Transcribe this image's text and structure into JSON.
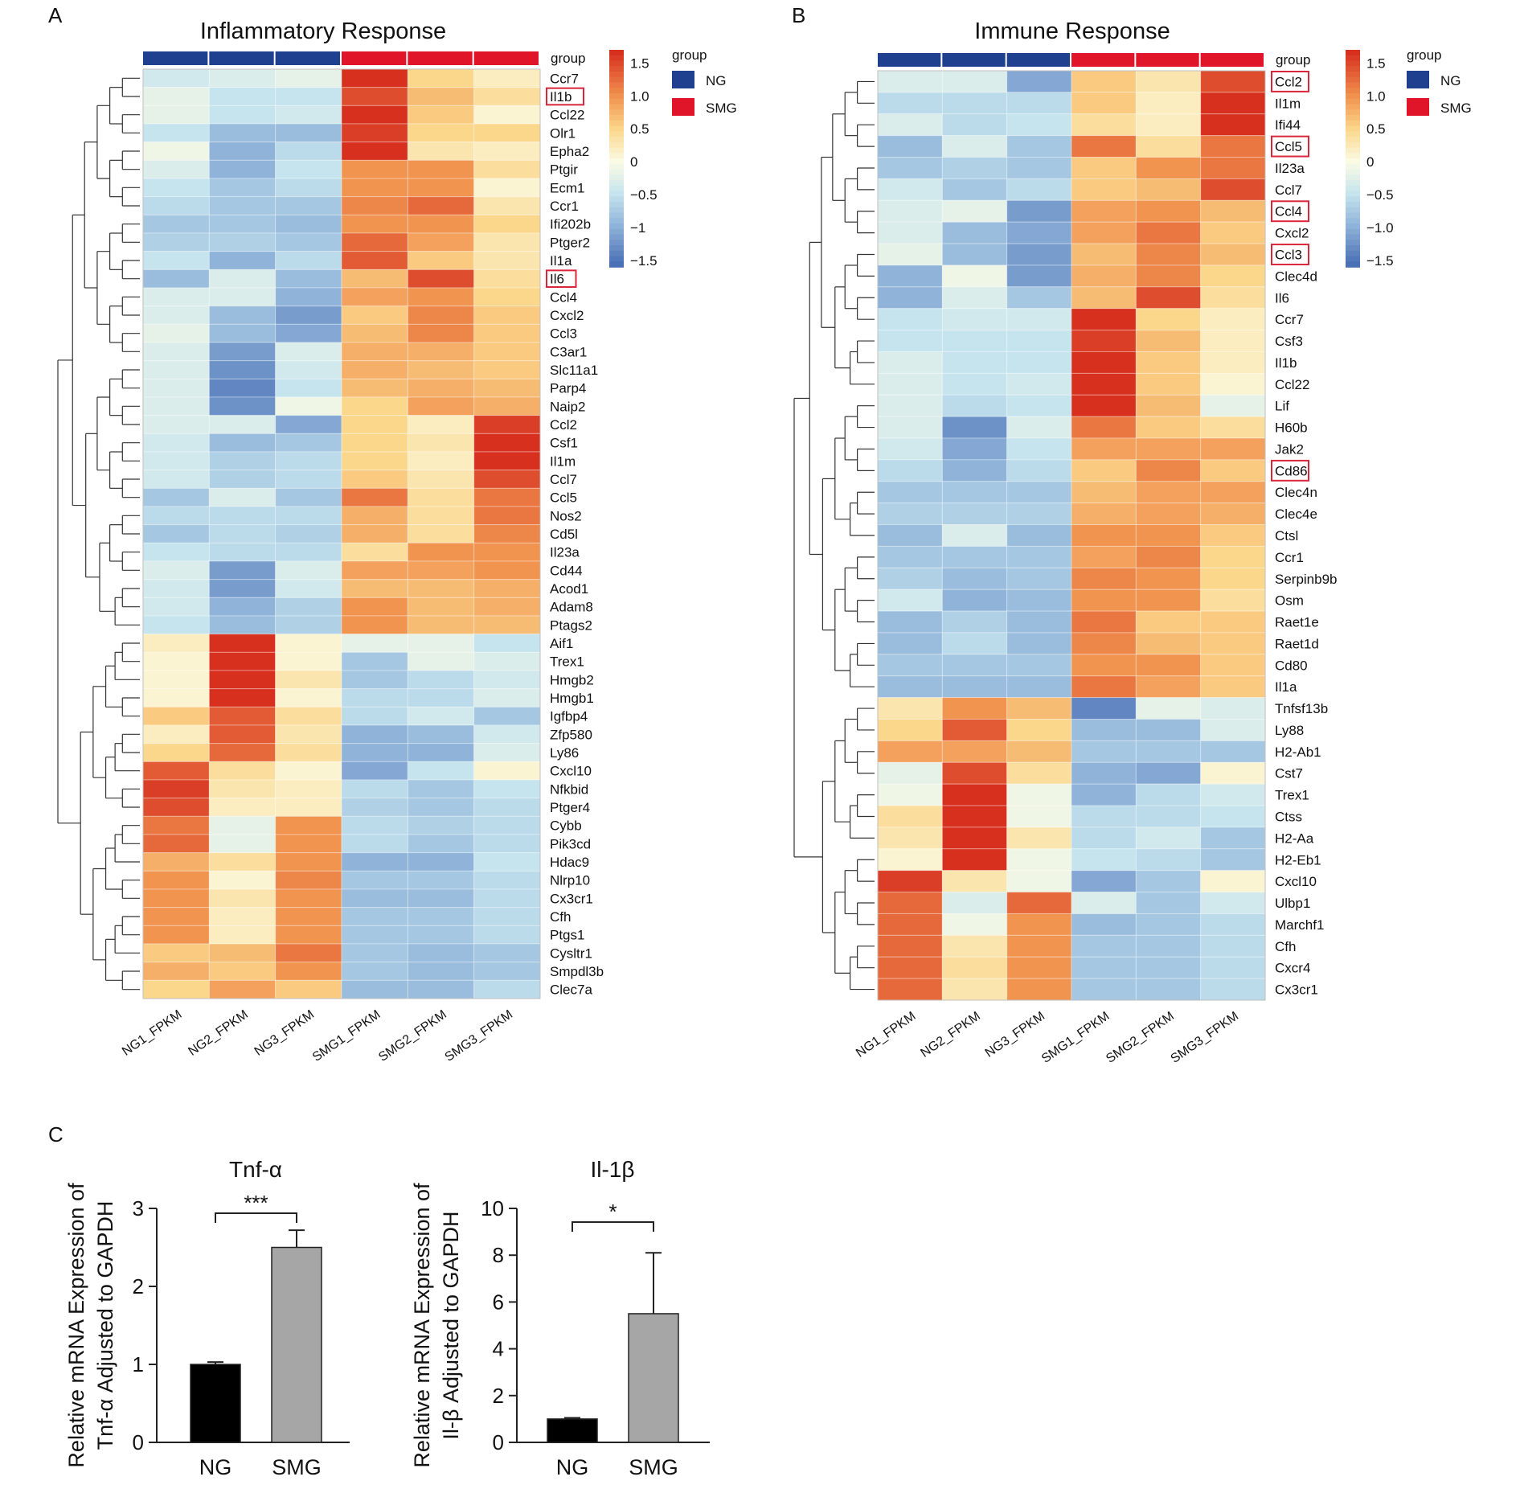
{
  "panels": {
    "A": {
      "label": "A",
      "title": "Inflammatory Response",
      "group_label": "group",
      "columns": [
        "NG1_FPKM",
        "NG2_FPKM",
        "NG3_FPKM",
        "SMG1_FPKM",
        "SMG2_FPKM",
        "SMG3_FPKM"
      ],
      "column_groups": [
        "NG",
        "NG",
        "NG",
        "SMG",
        "SMG",
        "SMG"
      ],
      "genes": [
        "Ccr7",
        "Il1b",
        "Ccl22",
        "Olr1",
        "Epha2",
        "Ptgir",
        "Ecm1",
        "Ccr1",
        "Ifi202b",
        "Ptger2",
        "Il1a",
        "Il6",
        "Ccl4",
        "Cxcl2",
        "Ccl3",
        "C3ar1",
        "Slc11a1",
        "Parp4",
        "Naip2",
        "Ccl2",
        "Csf1",
        "Il1m",
        "Ccl7",
        "Ccl5",
        "Nos2",
        "Cd5l",
        "Il23a",
        "Cd44",
        "Acod1",
        "Adam8",
        "Ptags2",
        "Aif1",
        "Trex1",
        "Hmgb2",
        "Hmgb1",
        "Igfbp4",
        "Zfp580",
        "Ly86",
        "Cxcl10",
        "Nfkbid",
        "Ptger4",
        "Cybb",
        "Pik3cd",
        "Hdac9",
        "Nlrp10",
        "Cx3cr1",
        "Cfh",
        "Ptgs1",
        "Cysltr1",
        "Smpdl3b",
        "Clec7a"
      ],
      "highlighted_genes": [
        "Il1b",
        "Il6"
      ],
      "scale_ticks": [
        "1.5",
        "1.0",
        "0.5",
        "0",
        "−0.5",
        "−1",
        "−1.5"
      ],
      "legend_title": "group",
      "legend_items": [
        {
          "name": "NG",
          "color": "#1f3f8f"
        },
        {
          "name": "SMG",
          "color": "#e0152a"
        }
      ]
    },
    "B": {
      "label": "B",
      "title": "Immune Response",
      "group_label": "group",
      "columns": [
        "NG1_FPKM",
        "NG2_FPKM",
        "NG3_FPKM",
        "SMG1_FPKM",
        "SMG2_FPKM",
        "SMG3_FPKM"
      ],
      "column_groups": [
        "NG",
        "NG",
        "NG",
        "SMG",
        "SMG",
        "SMG"
      ],
      "genes": [
        "Ccl2",
        "Il1m",
        "Ifi44",
        "Ccl5",
        "Il23a",
        "Ccl7",
        "Ccl4",
        "Cxcl2",
        "Ccl3",
        "Clec4d",
        "Il6",
        "Ccr7",
        "Csf3",
        "Il1b",
        "Ccl22",
        "Lif",
        "H60b",
        "Jak2",
        "Cd86",
        "Clec4n",
        "Clec4e",
        "Ctsl",
        "Ccr1",
        "Serpinb9b",
        "Osm",
        "Raet1e",
        "Raet1d",
        "Cd80",
        "Il1a",
        "Tnfsf13b",
        "Ly88",
        "H2-Ab1",
        "Cst7",
        "Trex1",
        "Ctss",
        "H2-Aa",
        "H2-Eb1",
        "Cxcl10",
        "Ulbp1",
        "Marchf1",
        "Cfh",
        "Cxcr4",
        "Cx3cr1"
      ],
      "highlighted_genes": [
        "Ccl2",
        "Ccl5",
        "Ccl4",
        "Ccl3",
        "Cd86"
      ],
      "scale_ticks": [
        "1.5",
        "1.0",
        "0.5",
        "0",
        "−0.5",
        "−1.0",
        "−1.5"
      ],
      "legend_title": "group",
      "legend_items": [
        {
          "name": "NG",
          "color": "#1f3f8f"
        },
        {
          "name": "SMG",
          "color": "#e0152a"
        }
      ]
    },
    "C": {
      "label": "C"
    }
  },
  "colors": {
    "ng": "#1f3f8f",
    "smg": "#e0152a",
    "highlight_box": "#d9263a",
    "bar_ng": "#000000",
    "bar_smg": "#a6a6a6",
    "heat_scale": [
      "#4a70b5",
      "#8fb3d9",
      "#c6e4ee",
      "#fbfbe3",
      "#fbd78c",
      "#f19450",
      "#d7301f"
    ]
  },
  "chart_data": [
    {
      "type": "heatmap",
      "title": "Inflammatory Response",
      "x": [
        "NG1_FPKM",
        "NG2_FPKM",
        "NG3_FPKM",
        "SMG1_FPKM",
        "SMG2_FPKM",
        "SMG3_FPKM"
      ],
      "y": [
        "Ccr7",
        "Il1b",
        "Ccl22",
        "Olr1",
        "Epha2",
        "Ptgir",
        "Ecm1",
        "Ccr1",
        "Ifi202b",
        "Ptger2",
        "Il1a",
        "Il6",
        "Ccl4",
        "Cxcl2",
        "Ccl3",
        "C3ar1",
        "Slc11a1",
        "Parp4",
        "Naip2",
        "Ccl2",
        "Csf1",
        "Il1m",
        "Ccl7",
        "Ccl5",
        "Nos2",
        "Cd5l",
        "Il23a",
        "Cd44",
        "Acod1",
        "Adam8",
        "Ptags2",
        "Aif1",
        "Trex1",
        "Hmgb2",
        "Hmgb1",
        "Igfbp4",
        "Zfp580",
        "Ly86",
        "Cxcl10",
        "Nfkbid",
        "Ptger4",
        "Cybb",
        "Pik3cd",
        "Hdac9",
        "Nlrp10",
        "Cx3cr1",
        "Cfh",
        "Ptgs1",
        "Cysltr1",
        "Smpdl3b",
        "Clec7a"
      ],
      "color_range": [
        -1.5,
        1.5
      ],
      "values": [
        [
          -0.4,
          -0.3,
          -0.2,
          1.8,
          0.5,
          0.2
        ],
        [
          -0.2,
          -0.5,
          -0.5,
          1.5,
          0.7,
          0.4
        ],
        [
          -0.2,
          -0.5,
          -0.4,
          1.8,
          0.6,
          0.1
        ],
        [
          -0.5,
          -0.9,
          -0.9,
          1.6,
          0.5,
          0.5
        ],
        [
          -0.1,
          -1.0,
          -0.6,
          2.0,
          0.3,
          0.2
        ],
        [
          -0.3,
          -1.0,
          -0.5,
          1.0,
          1.0,
          0.4
        ],
        [
          -0.5,
          -0.8,
          -0.6,
          1.0,
          1.0,
          0.1
        ],
        [
          -0.6,
          -0.8,
          -0.8,
          1.1,
          1.3,
          0.3
        ],
        [
          -0.8,
          -0.8,
          -0.9,
          1.0,
          1.0,
          0.5
        ],
        [
          -0.7,
          -0.7,
          -0.8,
          1.3,
          0.9,
          0.3
        ],
        [
          -0.5,
          -1.0,
          -0.6,
          1.4,
          0.6,
          0.3
        ],
        [
          -0.9,
          -0.3,
          -0.9,
          0.7,
          1.5,
          0.4
        ],
        [
          -0.3,
          -0.3,
          -1.0,
          0.9,
          1.0,
          0.5
        ],
        [
          -0.3,
          -0.9,
          -1.2,
          0.6,
          1.1,
          0.6
        ],
        [
          -0.2,
          -0.9,
          -1.1,
          0.7,
          1.1,
          0.6
        ],
        [
          -0.3,
          -1.2,
          -0.3,
          0.8,
          0.8,
          0.6
        ],
        [
          -0.3,
          -1.3,
          -0.4,
          0.8,
          0.7,
          0.6
        ],
        [
          -0.3,
          -1.4,
          -0.5,
          0.7,
          0.8,
          0.7
        ],
        [
          -0.3,
          -1.3,
          -0.1,
          0.5,
          0.9,
          0.8
        ],
        [
          -0.3,
          -0.3,
          -1.1,
          0.5,
          0.2,
          1.6
        ],
        [
          -0.4,
          -0.9,
          -0.8,
          0.5,
          0.3,
          1.8
        ],
        [
          -0.4,
          -0.7,
          -0.6,
          0.5,
          0.2,
          1.7
        ],
        [
          -0.4,
          -0.7,
          -0.6,
          0.6,
          0.3,
          1.5
        ],
        [
          -0.8,
          -0.3,
          -0.8,
          1.2,
          0.4,
          1.2
        ],
        [
          -0.6,
          -0.6,
          -0.6,
          0.8,
          0.4,
          1.2
        ],
        [
          -0.8,
          -0.6,
          -0.7,
          0.8,
          0.4,
          1.1
        ],
        [
          -0.5,
          -0.6,
          -0.6,
          0.4,
          1.0,
          1.0
        ],
        [
          -0.3,
          -1.2,
          -0.3,
          0.9,
          0.9,
          1.0
        ],
        [
          -0.4,
          -1.2,
          -0.4,
          0.7,
          0.7,
          0.8
        ],
        [
          -0.4,
          -1.0,
          -0.7,
          1.0,
          0.7,
          0.8
        ],
        [
          -0.5,
          -0.9,
          -0.7,
          1.0,
          0.7,
          0.7
        ],
        [
          0.2,
          2.0,
          0.1,
          -0.2,
          -0.2,
          -0.5
        ],
        [
          0.1,
          1.9,
          0.1,
          -0.8,
          -0.2,
          -0.3
        ],
        [
          0.1,
          1.9,
          0.3,
          -0.8,
          -0.6,
          -0.4
        ],
        [
          0.1,
          1.9,
          0.1,
          -0.6,
          -0.6,
          -0.3
        ],
        [
          0.6,
          1.4,
          0.4,
          -0.6,
          -0.4,
          -0.8
        ],
        [
          0.2,
          1.4,
          0.3,
          -1.0,
          -0.9,
          -0.4
        ],
        [
          0.5,
          1.3,
          0.4,
          -1.0,
          -1.0,
          -0.3
        ],
        [
          1.4,
          0.4,
          0.1,
          -1.1,
          -0.5,
          0.1
        ],
        [
          1.6,
          0.3,
          0.2,
          -0.6,
          -0.8,
          -0.5
        ],
        [
          1.5,
          0.2,
          0.2,
          -0.7,
          -0.8,
          -0.6
        ],
        [
          1.2,
          -0.2,
          1.0,
          -0.6,
          -0.7,
          -0.6
        ],
        [
          1.3,
          -0.2,
          1.0,
          -0.6,
          -0.8,
          -0.6
        ],
        [
          0.8,
          0.4,
          1.0,
          -1.0,
          -1.0,
          -0.5
        ],
        [
          1.0,
          0.1,
          1.1,
          -0.8,
          -0.8,
          -0.6
        ],
        [
          1.0,
          0.3,
          1.0,
          -0.9,
          -0.9,
          -0.6
        ],
        [
          1.0,
          0.2,
          1.0,
          -0.8,
          -0.8,
          -0.6
        ],
        [
          1.0,
          0.2,
          1.0,
          -0.8,
          -0.8,
          -0.6
        ],
        [
          0.6,
          0.7,
          1.2,
          -0.8,
          -0.9,
          -0.8
        ],
        [
          0.8,
          0.6,
          1.0,
          -0.8,
          -0.9,
          -0.8
        ],
        [
          0.5,
          0.9,
          0.6,
          -0.9,
          -0.9,
          -0.6
        ]
      ]
    },
    {
      "type": "heatmap",
      "title": "Immune Response",
      "x": [
        "NG1_FPKM",
        "NG2_FPKM",
        "NG3_FPKM",
        "SMG1_FPKM",
        "SMG2_FPKM",
        "SMG3_FPKM"
      ],
      "y": [
        "Ccl2",
        "Il1m",
        "Ifi44",
        "Ccl5",
        "Il23a",
        "Ccl7",
        "Ccl4",
        "Cxcl2",
        "Ccl3",
        "Clec4d",
        "Il6",
        "Ccr7",
        "Csf3",
        "Il1b",
        "Ccl22",
        "Lif",
        "H60b",
        "Jak2",
        "Cd86",
        "Clec4n",
        "Clec4e",
        "Ctsl",
        "Ccr1",
        "Serpinb9b",
        "Osm",
        "Raet1e",
        "Raet1d",
        "Cd80",
        "Il1a",
        "Tnfsf13b",
        "Ly88",
        "H2-Ab1",
        "Cst7",
        "Trex1",
        "Ctss",
        "H2-Aa",
        "H2-Eb1",
        "Cxcl10",
        "Ulbp1",
        "Marchf1",
        "Cfh",
        "Cxcr4",
        "Cx3cr1"
      ],
      "color_range": [
        -1.5,
        1.5
      ],
      "values": [
        [
          -0.3,
          -0.3,
          -1.1,
          0.6,
          0.3,
          1.5
        ],
        [
          -0.6,
          -0.6,
          -0.6,
          0.6,
          0.2,
          1.7
        ],
        [
          -0.3,
          -0.6,
          -0.5,
          0.4,
          0.2,
          1.9
        ],
        [
          -0.9,
          -0.3,
          -0.8,
          1.2,
          0.4,
          1.2
        ],
        [
          -0.8,
          -0.7,
          -0.8,
          0.6,
          1.0,
          1.2
        ],
        [
          -0.4,
          -0.8,
          -0.6,
          0.6,
          0.7,
          1.5
        ],
        [
          -0.3,
          -0.2,
          -1.2,
          0.9,
          1.0,
          0.7
        ],
        [
          -0.3,
          -0.9,
          -1.1,
          0.9,
          1.2,
          0.6
        ],
        [
          -0.2,
          -0.9,
          -1.2,
          0.7,
          1.1,
          0.7
        ],
        [
          -1.0,
          -0.1,
          -1.2,
          0.8,
          1.1,
          0.5
        ],
        [
          -1.0,
          -0.3,
          -0.8,
          0.7,
          1.5,
          0.4
        ],
        [
          -0.5,
          -0.4,
          -0.4,
          1.9,
          0.5,
          0.2
        ],
        [
          -0.5,
          -0.5,
          -0.5,
          1.6,
          0.7,
          0.2
        ],
        [
          -0.3,
          -0.5,
          -0.5,
          1.8,
          0.6,
          0.2
        ],
        [
          -0.3,
          -0.5,
          -0.4,
          1.8,
          0.6,
          0.1
        ],
        [
          -0.3,
          -0.6,
          -0.5,
          1.7,
          0.7,
          -0.2
        ],
        [
          -0.3,
          -1.3,
          -0.3,
          1.2,
          0.6,
          0.4
        ],
        [
          -0.4,
          -1.1,
          -0.5,
          0.9,
          0.9,
          0.9
        ],
        [
          -0.6,
          -1.0,
          -0.6,
          0.6,
          1.1,
          0.6
        ],
        [
          -0.8,
          -0.8,
          -0.8,
          0.7,
          0.9,
          0.9
        ],
        [
          -0.7,
          -0.7,
          -0.7,
          0.8,
          0.9,
          0.8
        ],
        [
          -0.9,
          -0.3,
          -0.9,
          1.0,
          1.0,
          0.6
        ],
        [
          -0.8,
          -0.8,
          -0.8,
          0.9,
          1.1,
          0.5
        ],
        [
          -0.7,
          -0.9,
          -0.8,
          1.1,
          1.0,
          0.5
        ],
        [
          -0.4,
          -1.0,
          -0.9,
          1.0,
          1.0,
          0.4
        ],
        [
          -0.9,
          -0.7,
          -0.9,
          1.2,
          0.6,
          0.6
        ],
        [
          -0.9,
          -0.6,
          -0.9,
          1.1,
          0.7,
          0.6
        ],
        [
          -0.8,
          -0.8,
          -0.8,
          1.0,
          1.0,
          0.6
        ],
        [
          -0.9,
          -0.9,
          -0.9,
          1.2,
          0.9,
          0.6
        ],
        [
          0.3,
          1.0,
          0.7,
          -1.4,
          -0.2,
          -0.3
        ],
        [
          0.5,
          1.4,
          0.5,
          -0.9,
          -0.9,
          -0.3
        ],
        [
          0.9,
          0.9,
          0.7,
          -0.8,
          -0.8,
          -0.8
        ],
        [
          -0.2,
          1.5,
          0.4,
          -1.0,
          -1.1,
          0.1
        ],
        [
          -0.1,
          2.0,
          -0.1,
          -1.0,
          -0.6,
          -0.4
        ],
        [
          0.4,
          2.0,
          -0.1,
          -0.6,
          -0.6,
          -0.5
        ],
        [
          0.3,
          1.9,
          0.3,
          -0.6,
          -0.4,
          -0.8
        ],
        [
          0.1,
          2.0,
          -0.1,
          -0.5,
          -0.6,
          -0.8
        ],
        [
          1.6,
          0.3,
          -0.1,
          -1.1,
          -0.8,
          0.1
        ],
        [
          1.3,
          -0.3,
          1.3,
          -0.3,
          -0.8,
          -0.4
        ],
        [
          1.3,
          -0.1,
          1.0,
          -0.9,
          -0.8,
          -0.6
        ],
        [
          1.3,
          0.3,
          1.0,
          -0.8,
          -0.8,
          -0.6
        ],
        [
          1.3,
          0.4,
          1.0,
          -0.8,
          -0.8,
          -0.6
        ],
        [
          1.3,
          0.3,
          1.0,
          -0.8,
          -0.8,
          -0.6
        ]
      ]
    },
    {
      "type": "bar",
      "title": "Tnf-α",
      "categories": [
        "NG",
        "SMG"
      ],
      "values": [
        1.0,
        2.5
      ],
      "error": [
        0.03,
        0.22
      ],
      "ylabel": [
        "Relative mRNA Expression of",
        "Tnf-α Adjusted to GAPDH"
      ],
      "ylim": [
        0,
        3
      ],
      "yticks": [
        0,
        1,
        2,
        3
      ],
      "significance": "***"
    },
    {
      "type": "bar",
      "title": "Il-1β",
      "categories": [
        "NG",
        "SMG"
      ],
      "values": [
        1.0,
        5.5
      ],
      "error": [
        0.05,
        2.6
      ],
      "ylabel": [
        "Relative mRNA Expression of",
        "Il-β Adjusted to GAPDH"
      ],
      "ylim": [
        0,
        10
      ],
      "yticks": [
        0,
        2,
        4,
        6,
        8,
        10
      ],
      "significance": "*"
    }
  ]
}
